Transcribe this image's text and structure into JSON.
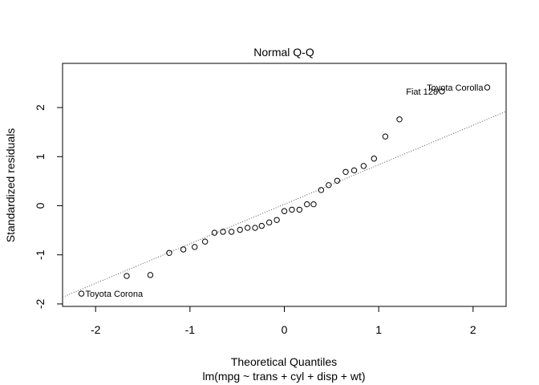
{
  "chart_data": {
    "type": "scatter",
    "title": "Normal Q-Q",
    "xlabel": "Theoretical Quantiles",
    "subtitle": "lm(mpg ~ trans + cyl + disp + wt)",
    "ylabel": "Standardized residuals",
    "xlim": [
      -2.35,
      2.35
    ],
    "ylim": [
      -2.05,
      2.9
    ],
    "xticks": [
      -2,
      -1,
      0,
      1,
      2
    ],
    "yticks": [
      -2,
      -1,
      0,
      1,
      2
    ],
    "grid": false,
    "reference_line": {
      "style": "dotted",
      "intercept": 0.03,
      "slope": 0.805
    },
    "points": [
      {
        "x": -2.15,
        "y": -1.79
      },
      {
        "x": -1.67,
        "y": -1.43
      },
      {
        "x": -1.42,
        "y": -1.41
      },
      {
        "x": -1.22,
        "y": -0.96
      },
      {
        "x": -1.07,
        "y": -0.89
      },
      {
        "x": -0.95,
        "y": -0.84
      },
      {
        "x": -0.84,
        "y": -0.73
      },
      {
        "x": -0.74,
        "y": -0.55
      },
      {
        "x": -0.65,
        "y": -0.53
      },
      {
        "x": -0.56,
        "y": -0.53
      },
      {
        "x": -0.47,
        "y": -0.49
      },
      {
        "x": -0.39,
        "y": -0.45
      },
      {
        "x": -0.31,
        "y": -0.45
      },
      {
        "x": -0.24,
        "y": -0.41
      },
      {
        "x": -0.16,
        "y": -0.34
      },
      {
        "x": -0.08,
        "y": -0.29
      },
      {
        "x": 0.0,
        "y": -0.11
      },
      {
        "x": 0.08,
        "y": -0.08
      },
      {
        "x": 0.16,
        "y": -0.08
      },
      {
        "x": 0.24,
        "y": 0.03
      },
      {
        "x": 0.31,
        "y": 0.03
      },
      {
        "x": 0.39,
        "y": 0.32
      },
      {
        "x": 0.47,
        "y": 0.42
      },
      {
        "x": 0.56,
        "y": 0.51
      },
      {
        "x": 0.65,
        "y": 0.69
      },
      {
        "x": 0.74,
        "y": 0.72
      },
      {
        "x": 0.84,
        "y": 0.81
      },
      {
        "x": 0.95,
        "y": 0.96
      },
      {
        "x": 1.07,
        "y": 1.41
      },
      {
        "x": 1.22,
        "y": 1.76
      },
      {
        "x": 1.67,
        "y": 2.33
      },
      {
        "x": 2.15,
        "y": 2.41
      }
    ],
    "labeled_points": [
      {
        "label": "Toyota Corona",
        "x": -2.15,
        "y": -1.79,
        "side": "right"
      },
      {
        "label": "Fiat 128",
        "x": 1.67,
        "y": 2.33,
        "side": "left"
      },
      {
        "label": "Toyota Corolla",
        "x": 2.15,
        "y": 2.41,
        "side": "left"
      }
    ]
  }
}
